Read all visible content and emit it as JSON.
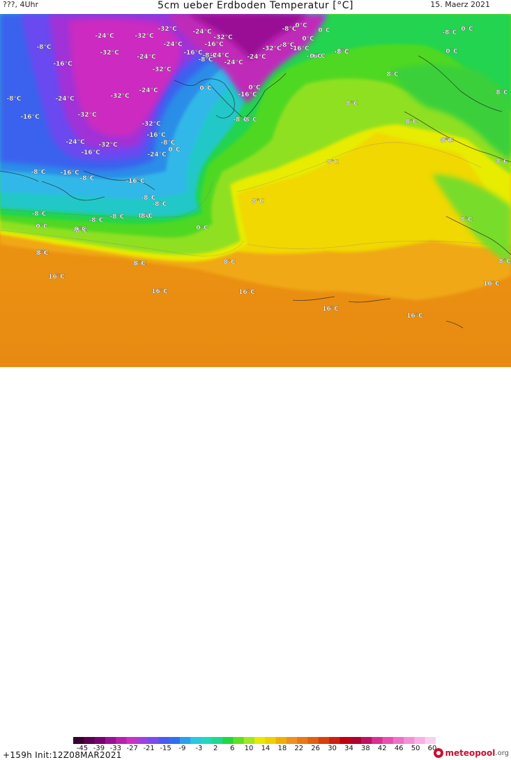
{
  "header": {
    "top_left": "???, 4Uhr",
    "title": "5cm ueber Erdboden Temperatur [°C]",
    "date": "15. Maerz 2021"
  },
  "footer": {
    "run_info": "+159h Init:12Z08MAR2021",
    "brand_main": "meteopool",
    "brand_suffix": ".org"
  },
  "colorbar": {
    "tick_labels": [
      "-45",
      "-39",
      "-33",
      "-27",
      "-21",
      "-15",
      "-9",
      "-3",
      "2",
      "6",
      "10",
      "14",
      "18",
      "22",
      "26",
      "30",
      "34",
      "38",
      "42",
      "46",
      "50",
      "60"
    ],
    "colors": [
      "#3a0030",
      "#5a0050",
      "#7a0070",
      "#9a1095",
      "#b820b0",
      "#cc30c8",
      "#a040e0",
      "#7a4cf0",
      "#4b5af5",
      "#3070f0",
      "#2aa0ee",
      "#28c8e0",
      "#20d8c0",
      "#1fd890",
      "#20d840",
      "#60e020",
      "#a0e820",
      "#e8e800",
      "#f0d000",
      "#f0b000",
      "#f09020",
      "#e87818",
      "#e06010",
      "#d84010",
      "#cc2010",
      "#c00010",
      "#b00030",
      "#c01060",
      "#d83090",
      "#e850b0",
      "#f070c8",
      "#f490d8",
      "#f8b0e6",
      "#fad0f0"
    ]
  },
  "map_labels": [
    {
      "text": "-32°C"
    },
    {
      "text": "-24°C"
    },
    {
      "text": "-32°C"
    },
    {
      "text": "-24°C"
    },
    {
      "text": "-32°C"
    },
    {
      "text": "0°C"
    },
    {
      "text": "-8°C"
    },
    {
      "text": "0°C"
    },
    {
      "text": "-8°C"
    },
    {
      "text": "-16°C"
    },
    {
      "text": "-24°C"
    },
    {
      "text": "-16°C"
    },
    {
      "text": "-8°C"
    },
    {
      "text": "-24°C"
    },
    {
      "text": "-24°C"
    },
    {
      "text": "-32°C"
    },
    {
      "text": "-16°C"
    },
    {
      "text": "-32°C"
    },
    {
      "text": "-24°C"
    },
    {
      "text": "-16°C"
    },
    {
      "text": "-8°C"
    },
    {
      "text": "0°C"
    },
    {
      "text": "-8°C"
    },
    {
      "text": "-16°C"
    },
    {
      "text": "-8°C"
    },
    {
      "text": "0°C"
    },
    {
      "text": "-24°C"
    },
    {
      "text": "-24°C"
    },
    {
      "text": "-32°C"
    },
    {
      "text": "-16°C"
    },
    {
      "text": "-32°C"
    },
    {
      "text": "-32°C"
    },
    {
      "text": "-24°C"
    },
    {
      "text": "-8°C"
    },
    {
      "text": "-16°C"
    },
    {
      "text": "-32°C"
    },
    {
      "text": "-16°C"
    },
    {
      "text": "0°C"
    },
    {
      "text": "8°C"
    },
    {
      "text": "0°C"
    },
    {
      "text": "-8°C"
    },
    {
      "text": "-16°C"
    },
    {
      "text": "-24°C"
    },
    {
      "text": "-8°C"
    },
    {
      "text": "-32°C"
    },
    {
      "text": "-24°C"
    },
    {
      "text": "-8°C"
    },
    {
      "text": "-16°C"
    },
    {
      "text": "-8°C"
    },
    {
      "text": "-8°C"
    },
    {
      "text": "-16°C"
    },
    {
      "text": "-8°C"
    },
    {
      "text": "-8°C"
    },
    {
      "text": "0°C"
    },
    {
      "text": "-8°C"
    },
    {
      "text": "0°C"
    },
    {
      "text": "-8°C"
    },
    {
      "text": "-8°C"
    },
    {
      "text": "-8°C"
    },
    {
      "text": "0°C"
    },
    {
      "text": "8°C"
    },
    {
      "text": "0°C"
    },
    {
      "text": "-8°C"
    },
    {
      "text": "0°C"
    },
    {
      "text": "0°C"
    },
    {
      "text": "-8°C"
    },
    {
      "text": "8°C"
    },
    {
      "text": "0°C"
    },
    {
      "text": "8°C"
    },
    {
      "text": "8°C"
    },
    {
      "text": "8°C"
    },
    {
      "text": "8°C"
    },
    {
      "text": "8°C"
    },
    {
      "text": "8°C"
    },
    {
      "text": "8°C"
    },
    {
      "text": "8°C"
    },
    {
      "text": "8°C"
    },
    {
      "text": "16°C"
    },
    {
      "text": "16°C"
    },
    {
      "text": "16°C"
    },
    {
      "text": "16°C"
    },
    {
      "text": "16°C"
    },
    {
      "text": "16°C"
    },
    {
      "text": "8°C"
    },
    {
      "text": "8°C"
    },
    {
      "text": "8°C"
    },
    {
      "text": "8°C"
    },
    {
      "text": "8°C"
    }
  ]
}
